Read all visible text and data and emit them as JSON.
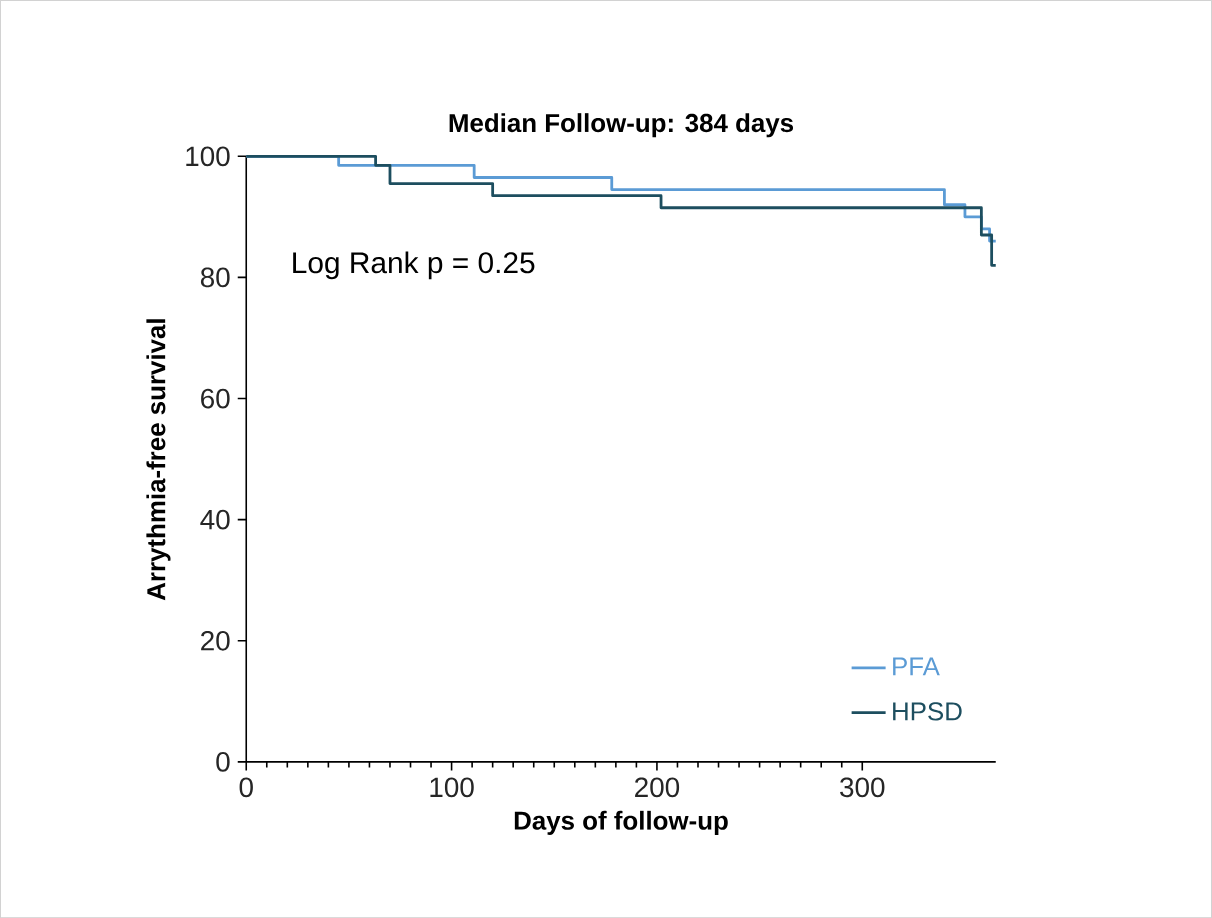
{
  "chart_data": {
    "type": "step",
    "title": "Median Follow-up: 384 days",
    "xlabel": "Days of follow-up",
    "ylabel": "Arrythmia-free survival",
    "annotations": [
      "Log Rank p = 0.25"
    ],
    "xlim": [
      0,
      365
    ],
    "xticks": [
      0,
      100,
      200,
      300
    ],
    "ylim": [
      0,
      100
    ],
    "yticks": [
      0,
      20,
      40,
      60,
      80,
      100
    ],
    "grid": false,
    "legend": "bottom right",
    "series": [
      {
        "name": "PFA",
        "color": "#5b9bd5",
        "x": [
          0,
          45,
          111,
          178,
          340,
          350,
          358,
          362,
          365
        ],
        "values": [
          100,
          98.5,
          96.5,
          94.5,
          92,
          90,
          88,
          86,
          86
        ]
      },
      {
        "name": "HPSD",
        "color": "#1d4e5f",
        "x": [
          0,
          63,
          70,
          120,
          202,
          358,
          363,
          365
        ],
        "values": [
          100,
          98.5,
          95.5,
          93.5,
          91.5,
          87,
          82,
          82
        ]
      }
    ]
  }
}
